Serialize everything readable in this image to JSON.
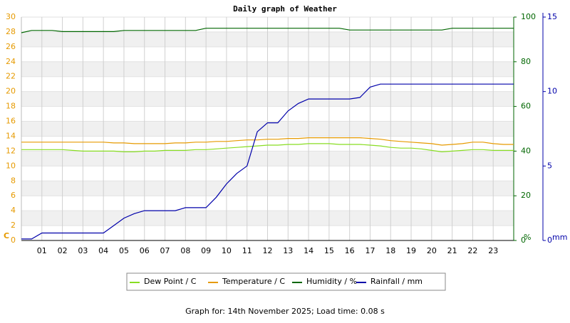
{
  "chart_data": {
    "type": "line",
    "title": "Daily graph of Weather",
    "caption": "Graph for: 14th November 2025; Load time: 0.08 s",
    "ylabel": "C",
    "y2label": "%",
    "y3label": "mm",
    "ycolor": "#e69a00",
    "y2color": "#006600",
    "y3color": "#0000aa",
    "grid": true,
    "x": [
      0,
      0.5,
      1,
      1.5,
      2,
      2.5,
      3,
      3.5,
      4,
      4.5,
      5,
      5.5,
      6,
      6.5,
      7,
      7.5,
      8,
      8.5,
      9,
      9.5,
      10,
      10.5,
      11,
      11.5,
      12,
      12.5,
      13,
      13.5,
      14,
      14.5,
      15,
      15.5,
      16,
      16.5,
      17,
      17.5,
      18,
      18.5,
      19,
      19.5,
      20,
      20.5,
      21,
      21.5,
      22,
      22.5,
      23,
      23.5,
      24
    ],
    "xlim": [
      0,
      24
    ],
    "xticks": [
      {
        "value": 1,
        "label": "01"
      },
      {
        "value": 2,
        "label": "02"
      },
      {
        "value": 3,
        "label": "03"
      },
      {
        "value": 4,
        "label": "04"
      },
      {
        "value": 5,
        "label": "05"
      },
      {
        "value": 6,
        "label": "06"
      },
      {
        "value": 7,
        "label": "07"
      },
      {
        "value": 8,
        "label": "08"
      },
      {
        "value": 9,
        "label": "09"
      },
      10,
      11,
      12,
      13,
      14,
      15,
      16,
      17,
      18,
      19,
      20,
      21,
      22,
      23
    ],
    "ylim": [
      0,
      30
    ],
    "yticks": [
      0,
      2,
      4,
      6,
      8,
      10,
      12,
      14,
      16,
      18,
      20,
      22,
      24,
      26,
      28,
      30
    ],
    "y2lim": [
      0,
      100
    ],
    "y2ticks": [
      0,
      20,
      40,
      60,
      80,
      100
    ],
    "y3lim": [
      0,
      15
    ],
    "y3ticks": [
      0,
      5,
      10,
      15
    ],
    "series": [
      {
        "name": "Dew Point / C",
        "color": "#88dd22",
        "axis": "y",
        "values": [
          12.2,
          12.2,
          12.2,
          12.2,
          12.2,
          12.1,
          12.0,
          12.0,
          12.0,
          12.0,
          11.9,
          11.9,
          12.0,
          12.0,
          12.1,
          12.1,
          12.1,
          12.2,
          12.2,
          12.3,
          12.4,
          12.5,
          12.6,
          12.7,
          12.8,
          12.8,
          12.9,
          12.9,
          13.0,
          13.0,
          13.0,
          12.9,
          12.9,
          12.9,
          12.8,
          12.7,
          12.5,
          12.4,
          12.4,
          12.3,
          12.1,
          11.9,
          12.0,
          12.1,
          12.2,
          12.2,
          12.1,
          12.1,
          12.1
        ]
      },
      {
        "name": "Temperature / C",
        "color": "#e69a00",
        "axis": "y",
        "values": [
          13.2,
          13.2,
          13.2,
          13.2,
          13.2,
          13.2,
          13.2,
          13.2,
          13.2,
          13.1,
          13.1,
          13.0,
          13.0,
          13.0,
          13.0,
          13.1,
          13.1,
          13.2,
          13.2,
          13.3,
          13.3,
          13.4,
          13.5,
          13.5,
          13.6,
          13.6,
          13.7,
          13.7,
          13.8,
          13.8,
          13.8,
          13.8,
          13.8,
          13.8,
          13.7,
          13.6,
          13.4,
          13.3,
          13.2,
          13.1,
          13.0,
          12.8,
          12.9,
          13.0,
          13.2,
          13.2,
          13.0,
          12.9,
          12.9
        ]
      },
      {
        "name": "Humidity / %",
        "color": "#006600",
        "axis": "y2",
        "values": [
          93,
          94,
          94,
          94,
          93.5,
          93.5,
          93.5,
          93.5,
          93.5,
          93.5,
          94,
          94,
          94,
          94,
          94,
          94,
          94,
          94,
          95,
          95,
          95,
          95,
          95,
          95,
          95,
          95,
          95,
          95,
          95,
          95,
          95,
          95,
          94.2,
          94.2,
          94.2,
          94.2,
          94.2,
          94.2,
          94.2,
          94.2,
          94.2,
          94.2,
          95,
          95,
          95,
          95,
          95,
          95,
          95
        ]
      },
      {
        "name": "Rainfall / mm",
        "color": "#0000aa",
        "axis": "y3",
        "values": [
          0.1,
          0.1,
          0.5,
          0.5,
          0.5,
          0.5,
          0.5,
          0.5,
          0.5,
          1.0,
          1.5,
          1.8,
          2.0,
          2.0,
          2.0,
          2.0,
          2.2,
          2.2,
          2.2,
          2.9,
          3.8,
          4.5,
          5.0,
          7.3,
          7.9,
          7.9,
          8.7,
          9.2,
          9.5,
          9.5,
          9.5,
          9.5,
          9.5,
          9.6,
          10.3,
          10.5,
          10.5,
          10.5,
          10.5,
          10.5,
          10.5,
          10.5,
          10.5,
          10.5,
          10.5,
          10.5,
          10.5,
          10.5,
          10.5
        ]
      }
    ]
  }
}
